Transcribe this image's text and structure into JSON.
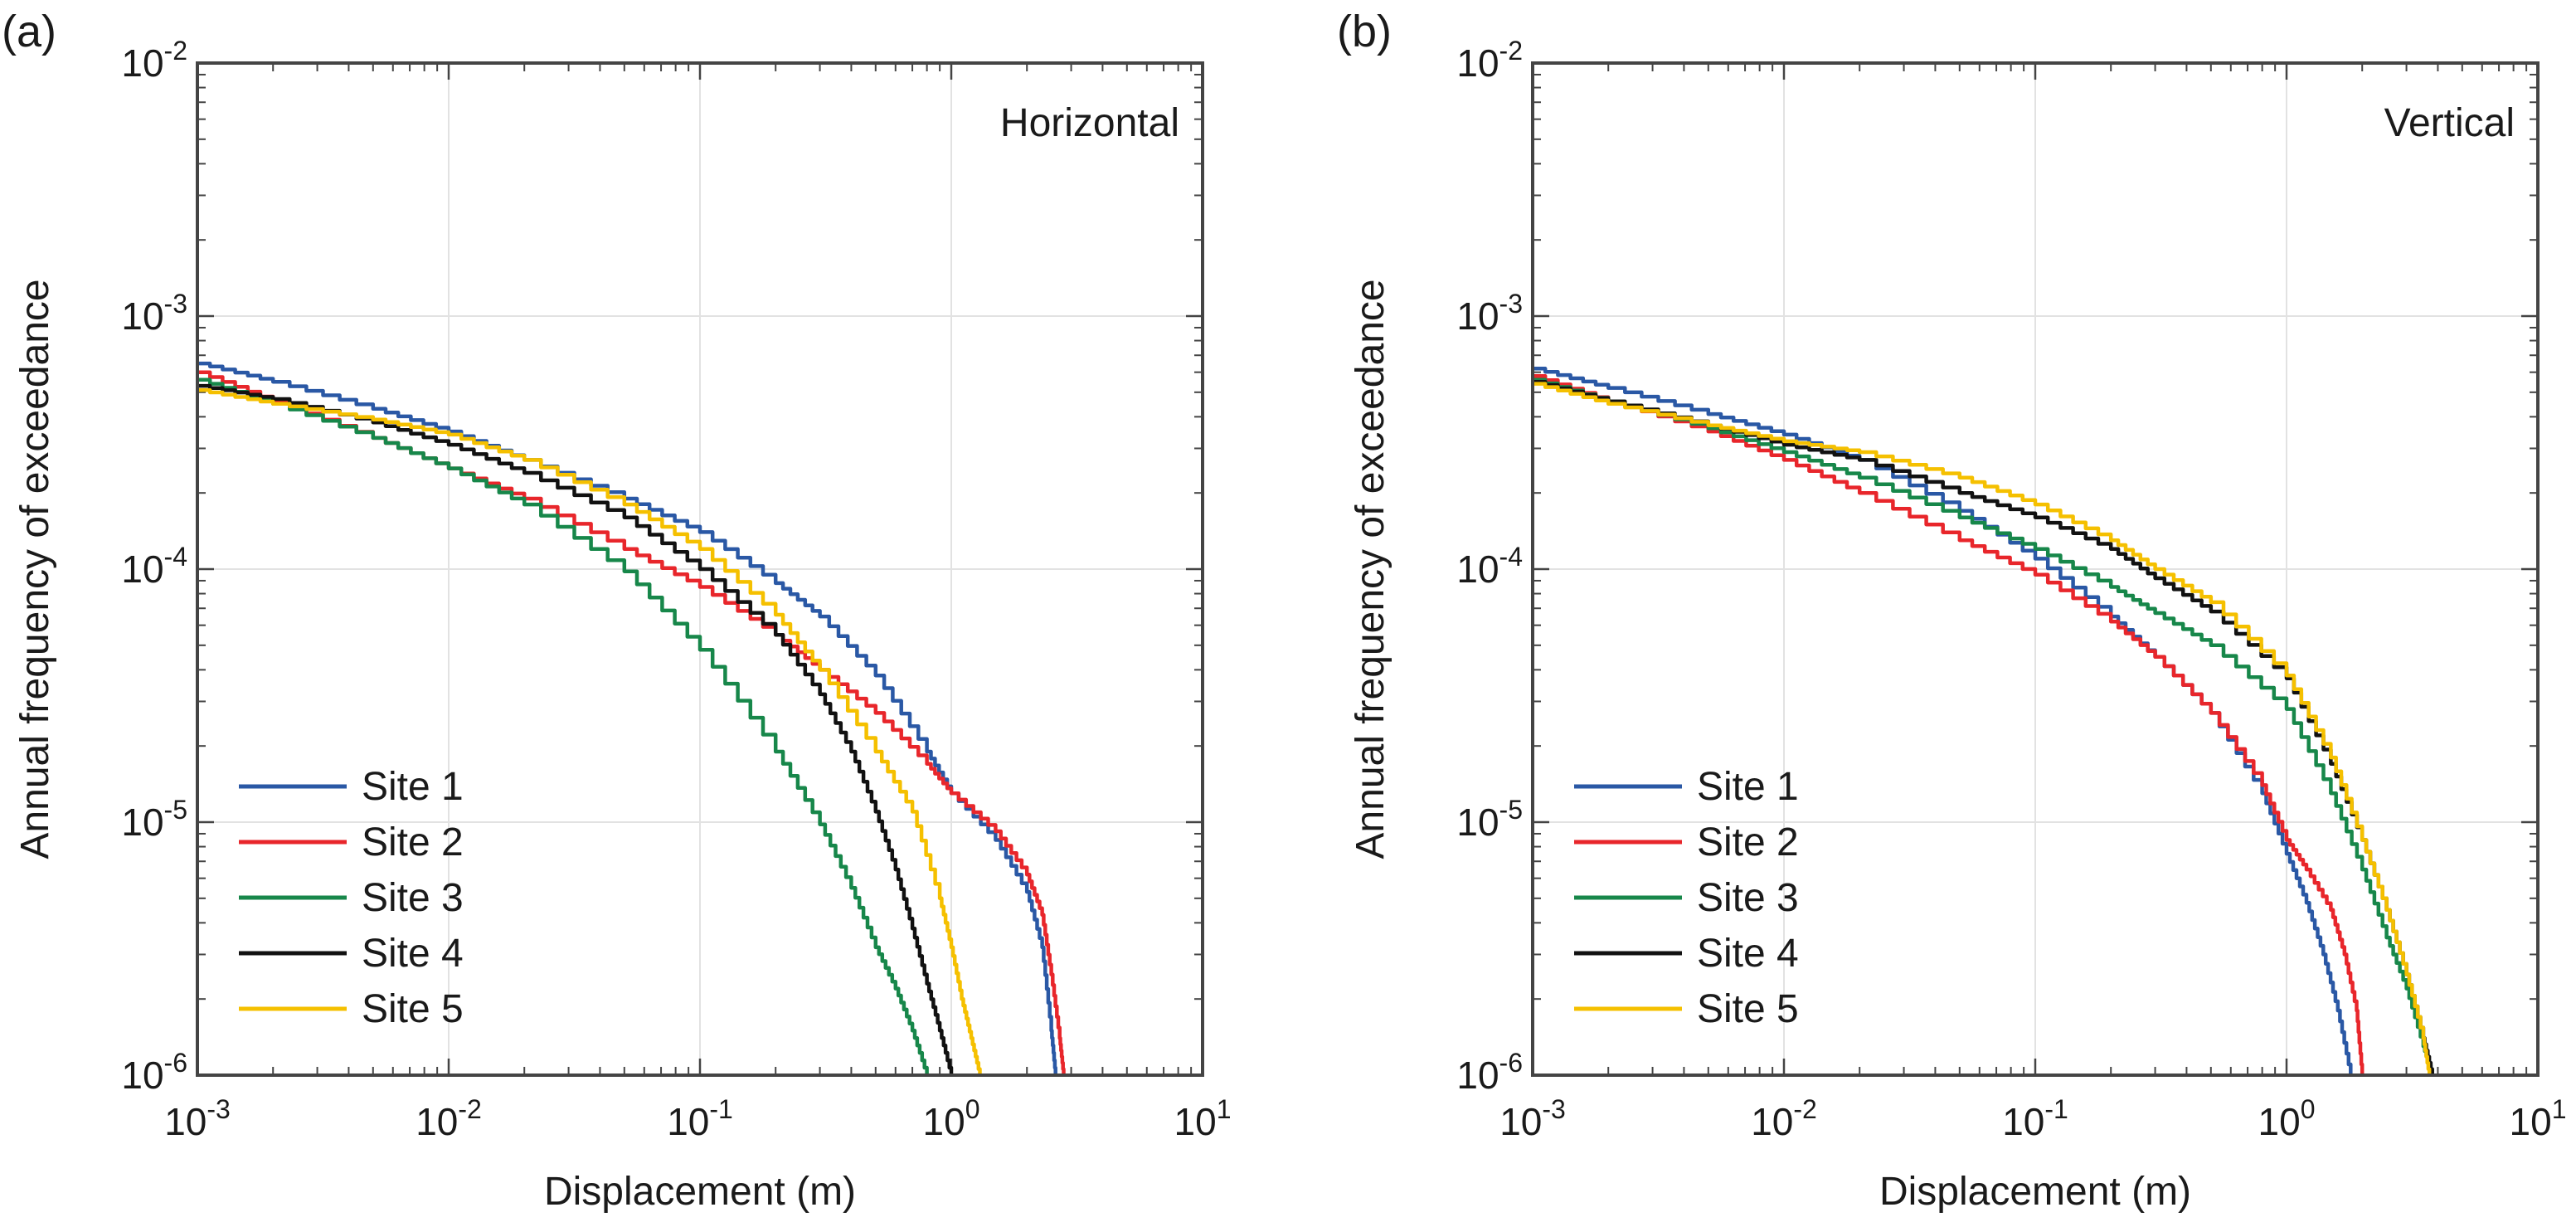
{
  "chart_data": [
    {
      "panel_label": "(a)",
      "type": "line",
      "title": "Horizontal",
      "xlabel": "Displacement (m)",
      "ylabel": "Annual frequency of exceedance",
      "xscale": "log",
      "yscale": "log",
      "xlim": [
        0.001,
        10
      ],
      "ylim": [
        1e-06,
        0.01
      ],
      "x_ticks": [
        {
          "base": "10",
          "exp": "-3"
        },
        {
          "base": "10",
          "exp": "-2"
        },
        {
          "base": "10",
          "exp": "-1"
        },
        {
          "base": "10",
          "exp": "0"
        },
        {
          "base": "10",
          "exp": "1"
        }
      ],
      "y_ticks": [
        {
          "base": "10",
          "exp": "-6"
        },
        {
          "base": "10",
          "exp": "-5"
        },
        {
          "base": "10",
          "exp": "-4"
        },
        {
          "base": "10",
          "exp": "-3"
        },
        {
          "base": "10",
          "exp": "-2"
        }
      ],
      "grid": true,
      "legend_position": "bottom-left",
      "series": [
        {
          "name": "Site 1",
          "color": "#2a58a5",
          "x": [
            0.001,
            0.002,
            0.005,
            0.01,
            0.02,
            0.05,
            0.1,
            0.2,
            0.3,
            0.5,
            0.8,
            1.0,
            1.5,
            2.0,
            2.3,
            2.5,
            2.6
          ],
          "y": [
            0.00065,
            0.00055,
            0.00043,
            0.00035,
            0.00027,
            0.00019,
            0.00014,
            8.8e-05,
            6.5e-05,
            3.8e-05,
            1.9e-05,
            1.3e-05,
            8.5e-06,
            5.3e-06,
            3.2e-06,
            1.5e-06,
            1e-06
          ]
        },
        {
          "name": "Site 2",
          "color": "#e8262b",
          "x": [
            0.001,
            0.002,
            0.005,
            0.01,
            0.02,
            0.05,
            0.1,
            0.2,
            0.3,
            0.5,
            0.8,
            1.0,
            1.5,
            2.0,
            2.3,
            2.5,
            2.7,
            2.8
          ],
          "y": [
            0.0006,
            0.00046,
            0.00033,
            0.00025,
            0.00019,
            0.00012,
            8.5e-05,
            5.5e-05,
            4e-05,
            2.7e-05,
            1.7e-05,
            1.3e-05,
            9.2e-06,
            6.2e-06,
            4.3e-06,
            2.5e-06,
            1.4e-06,
            1e-06
          ]
        },
        {
          "name": "Site 3",
          "color": "#17874a",
          "x": [
            0.001,
            0.002,
            0.005,
            0.01,
            0.02,
            0.05,
            0.1,
            0.2,
            0.3,
            0.4,
            0.5,
            0.6,
            0.7,
            0.8
          ],
          "y": [
            0.00056,
            0.00045,
            0.00033,
            0.00025,
            0.00018,
            9.8e-05,
            4.8e-05,
            1.9e-05,
            9.8e-06,
            5.5e-06,
            3.2e-06,
            2.2e-06,
            1.5e-06,
            1e-06
          ]
        },
        {
          "name": "Site 4",
          "color": "#111111",
          "x": [
            0.001,
            0.002,
            0.005,
            0.01,
            0.02,
            0.05,
            0.1,
            0.2,
            0.3,
            0.4,
            0.5,
            0.6,
            0.7,
            0.8,
            0.9,
            1.0
          ],
          "y": [
            0.00053,
            0.00047,
            0.00038,
            0.00031,
            0.00024,
            0.00016,
            0.0001,
            5.5e-05,
            3.2e-05,
            1.9e-05,
            1.1e-05,
            6.5e-06,
            3.8e-06,
            2.3e-06,
            1.5e-06,
            1e-06
          ]
        },
        {
          "name": "Site 5",
          "color": "#f5c000",
          "x": [
            0.001,
            0.002,
            0.005,
            0.01,
            0.02,
            0.05,
            0.1,
            0.2,
            0.3,
            0.5,
            0.7,
            0.9,
            1.0,
            1.1,
            1.2,
            1.3
          ],
          "y": [
            0.00051,
            0.00045,
            0.00039,
            0.00034,
            0.00027,
            0.00018,
            0.00012,
            6.6e-05,
            4e-05,
            1.9e-05,
            1.1e-05,
            5e-06,
            3.2e-06,
            2e-06,
            1.4e-06,
            1e-06
          ]
        }
      ]
    },
    {
      "panel_label": "(b)",
      "type": "line",
      "title": "Vertical",
      "xlabel": "Displacement (m)",
      "ylabel": "Annual frequency of exceedance",
      "xscale": "log",
      "yscale": "log",
      "xlim": [
        0.001,
        10
      ],
      "ylim": [
        1e-06,
        0.01
      ],
      "x_ticks": [
        {
          "base": "10",
          "exp": "-3"
        },
        {
          "base": "10",
          "exp": "-2"
        },
        {
          "base": "10",
          "exp": "-1"
        },
        {
          "base": "10",
          "exp": "0"
        },
        {
          "base": "10",
          "exp": "1"
        }
      ],
      "y_ticks": [
        {
          "base": "10",
          "exp": "-6"
        },
        {
          "base": "10",
          "exp": "-5"
        },
        {
          "base": "10",
          "exp": "-4"
        },
        {
          "base": "10",
          "exp": "-3"
        },
        {
          "base": "10",
          "exp": "-2"
        }
      ],
      "grid": true,
      "legend_position": "bottom-left",
      "series": [
        {
          "name": "Site 1",
          "color": "#2a58a5",
          "x": [
            0.001,
            0.002,
            0.005,
            0.01,
            0.02,
            0.05,
            0.1,
            0.2,
            0.3,
            0.5,
            0.8,
            1.0,
            1.2,
            1.4,
            1.6,
            1.8
          ],
          "y": [
            0.00062,
            0.00052,
            0.00041,
            0.00034,
            0.00027,
            0.00017,
            0.00011,
            6.5e-05,
            4.5e-05,
            2.7e-05,
            1.3e-05,
            7.5e-06,
            4.8e-06,
            3e-06,
            1.8e-06,
            1e-06
          ]
        },
        {
          "name": "Site 2",
          "color": "#e8262b",
          "x": [
            0.001,
            0.002,
            0.005,
            0.01,
            0.02,
            0.05,
            0.1,
            0.2,
            0.3,
            0.5,
            0.8,
            1.0,
            1.2,
            1.5,
            1.7,
            1.9,
            2.0
          ],
          "y": [
            0.00058,
            0.00046,
            0.00035,
            0.00027,
            0.0002,
            0.00013,
            9.5e-05,
            6.2e-05,
            4.5e-05,
            2.7e-05,
            1.4e-05,
            8.5e-06,
            6.5e-06,
            4.5e-06,
            3e-06,
            1.8e-06,
            1e-06
          ]
        },
        {
          "name": "Site 3",
          "color": "#17874a",
          "x": [
            0.001,
            0.002,
            0.005,
            0.01,
            0.02,
            0.05,
            0.1,
            0.2,
            0.3,
            0.5,
            1.0,
            1.5,
            2.0,
            2.5,
            3.0,
            3.5,
            3.8
          ],
          "y": [
            0.00056,
            0.00046,
            0.00036,
            0.00029,
            0.00023,
            0.00016,
            0.00012,
            8.5e-05,
            6.7e-05,
            5e-05,
            2.8e-05,
            1.3e-05,
            6.5e-06,
            3.5e-06,
            2.2e-06,
            1.3e-06,
            1e-06
          ]
        },
        {
          "name": "Site 4",
          "color": "#111111",
          "x": [
            0.001,
            0.002,
            0.005,
            0.01,
            0.02,
            0.05,
            0.1,
            0.2,
            0.3,
            0.5,
            1.0,
            1.5,
            2.0,
            2.5,
            3.0,
            3.5,
            3.8
          ],
          "y": [
            0.00055,
            0.00046,
            0.00037,
            0.00031,
            0.00027,
            0.0002,
            0.00016,
            0.00012,
            9.2e-05,
            6.8e-05,
            3.7e-05,
            1.7e-05,
            8.5e-06,
            4.5e-06,
            2.5e-06,
            1.4e-06,
            1e-06
          ]
        },
        {
          "name": "Site 5",
          "color": "#f5c000",
          "x": [
            0.001,
            0.002,
            0.005,
            0.01,
            0.02,
            0.05,
            0.1,
            0.2,
            0.3,
            0.5,
            1.0,
            1.5,
            2.0,
            2.5,
            3.0,
            3.5,
            3.7
          ],
          "y": [
            0.00054,
            0.00045,
            0.00037,
            0.00032,
            0.00029,
            0.00023,
            0.00018,
            0.00013,
            0.0001,
            7.4e-05,
            3.8e-05,
            1.8e-05,
            8.5e-06,
            4.5e-06,
            2.5e-06,
            1.4e-06,
            1e-06
          ]
        }
      ]
    }
  ]
}
